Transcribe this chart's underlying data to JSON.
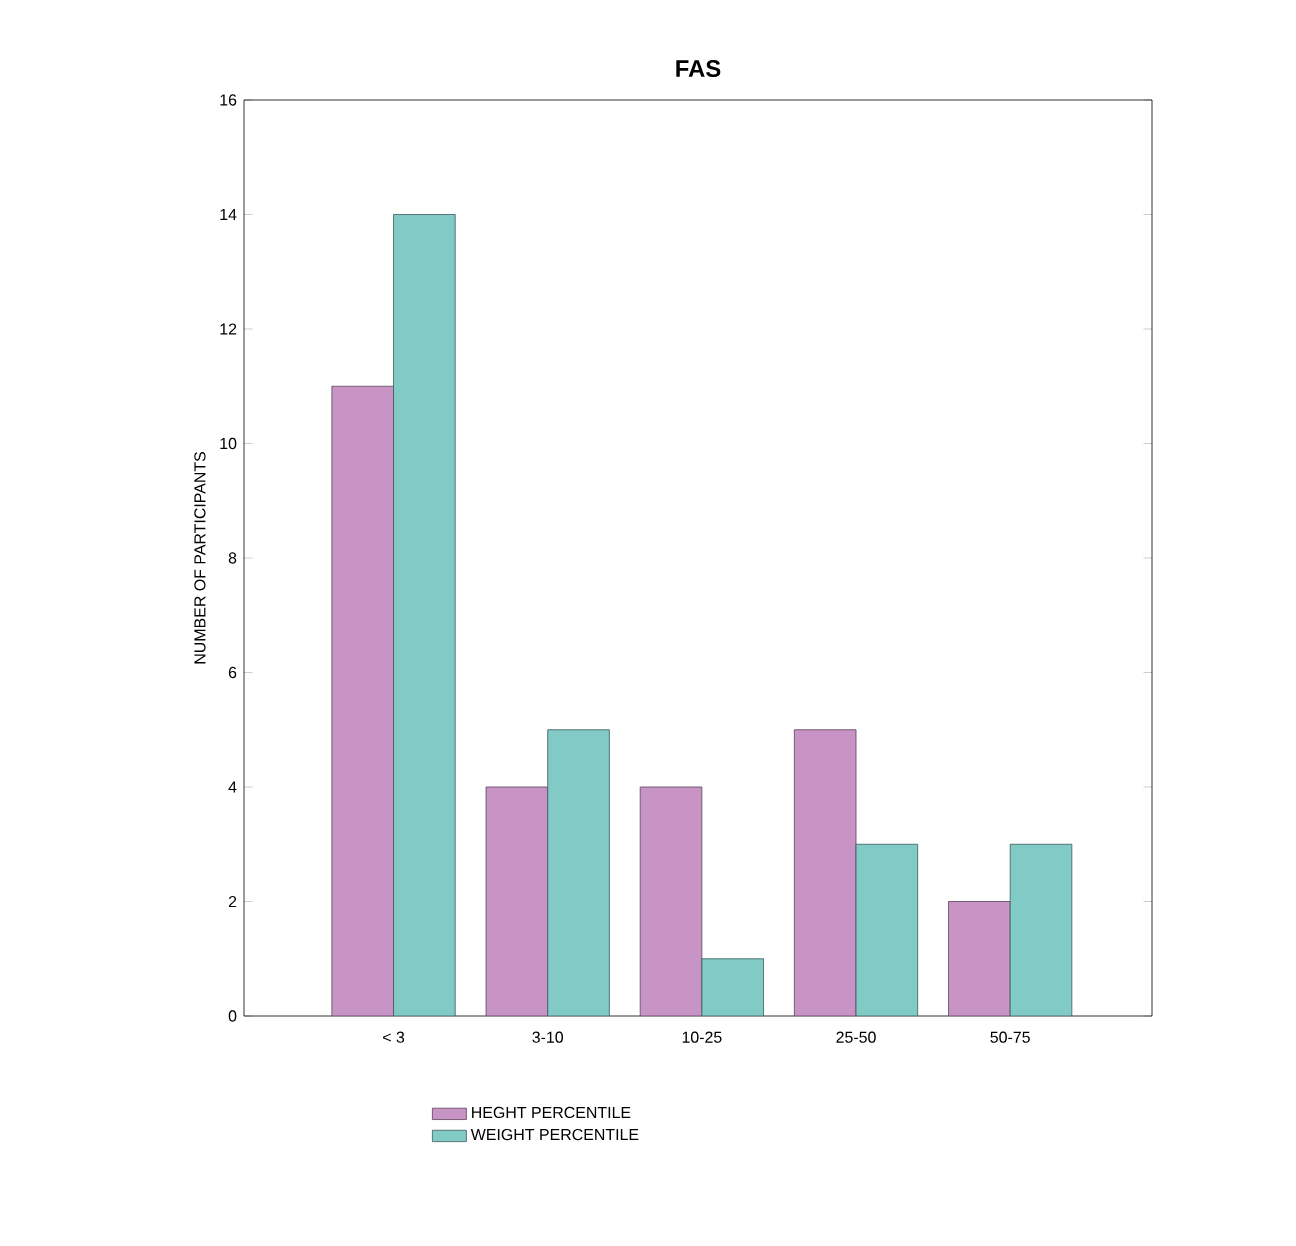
{
  "chart_data": {
    "type": "bar",
    "title": "FAS",
    "ylabel": "NUMBER OF PARTICIPANTS",
    "categories": [
      "< 3",
      "3-10",
      "10-25",
      "25-50",
      "50-75"
    ],
    "series": [
      {
        "name": "HEGHT PERCENTILE",
        "color": "#c893c5",
        "values": [
          11,
          4,
          4,
          5,
          2
        ]
      },
      {
        "name": "WEIGHT PERCENTILE",
        "color": "#81cac6",
        "values": [
          14,
          5,
          1,
          3,
          3
        ]
      }
    ],
    "ylim": [
      0,
      16
    ],
    "yticks": [
      0,
      2,
      4,
      6,
      8,
      10,
      12,
      14,
      16
    ],
    "legend": "bottom",
    "grid": false
  }
}
